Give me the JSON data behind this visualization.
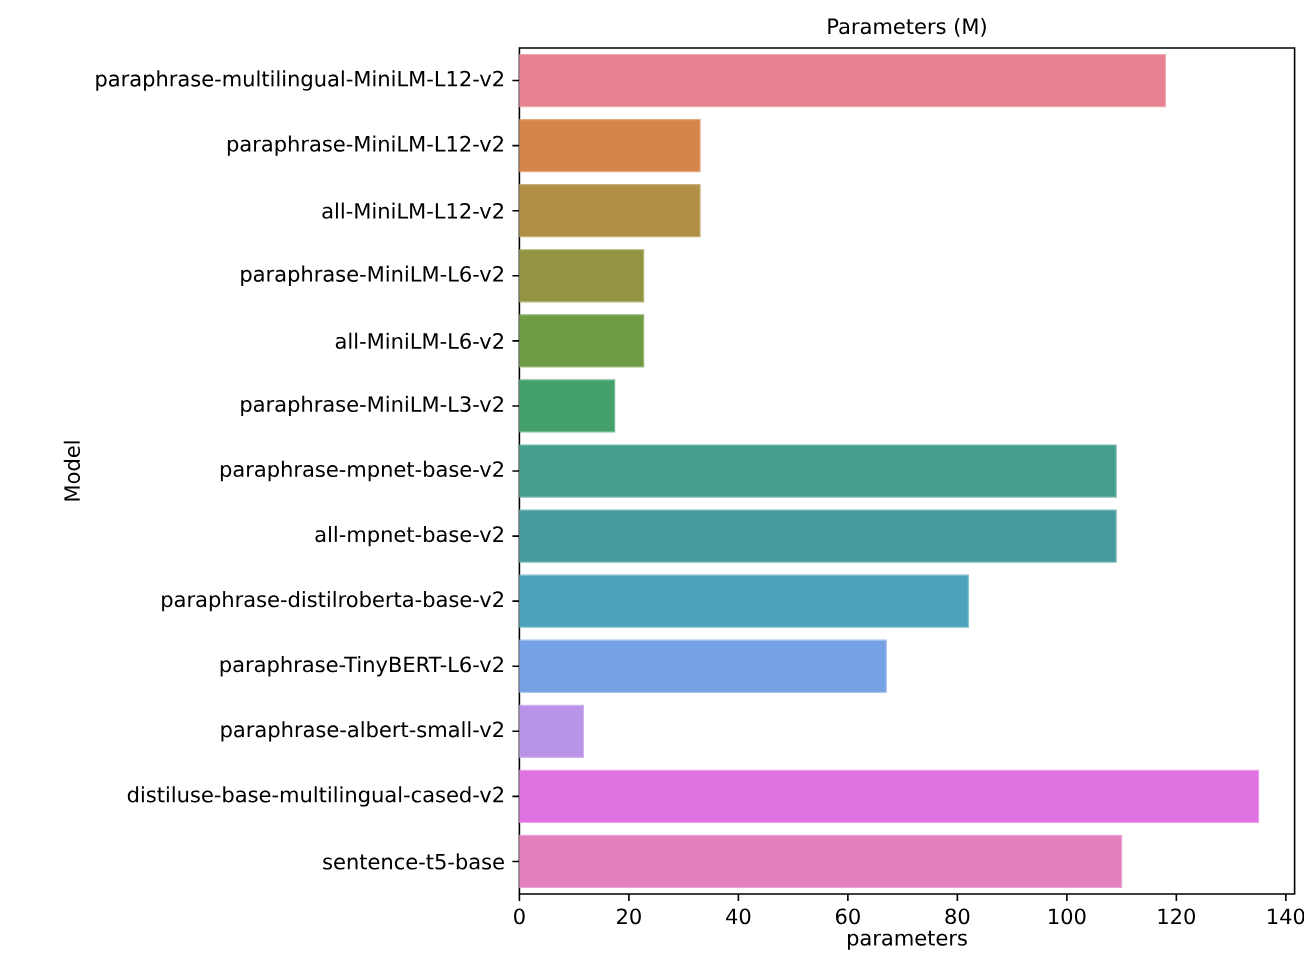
{
  "chart_data": {
    "type": "bar",
    "orientation": "horizontal",
    "title": "Parameters (M)",
    "xlabel": "parameters",
    "ylabel": "Model",
    "categories": [
      "paraphrase-multilingual-MiniLM-L12-v2",
      "paraphrase-MiniLM-L12-v2",
      "all-MiniLM-L12-v2",
      "paraphrase-MiniLM-L6-v2",
      "all-MiniLM-L6-v2",
      "paraphrase-MiniLM-L3-v2",
      "paraphrase-mpnet-base-v2",
      "all-mpnet-base-v2",
      "paraphrase-distilroberta-base-v2",
      "paraphrase-TinyBERT-L6-v2",
      "paraphrase-albert-small-v2",
      "distiluse-base-multilingual-cased-v2",
      "sentence-t5-base"
    ],
    "values": [
      118,
      33,
      33,
      22.7,
      22.7,
      17.4,
      109,
      109,
      82,
      67,
      11.7,
      135,
      110
    ],
    "colors": [
      "#e88190",
      "#d6854a",
      "#b08e44",
      "#929441",
      "#6e9b43",
      "#44a06a",
      "#459e8e",
      "#479b9f",
      "#4aa2bc",
      "#77a1e5",
      "#b993e8",
      "#e071e1",
      "#e37fbd"
    ],
    "xlim": [
      0,
      141.6
    ],
    "xticks": [
      0,
      20,
      40,
      60,
      80,
      100,
      120,
      140
    ]
  }
}
